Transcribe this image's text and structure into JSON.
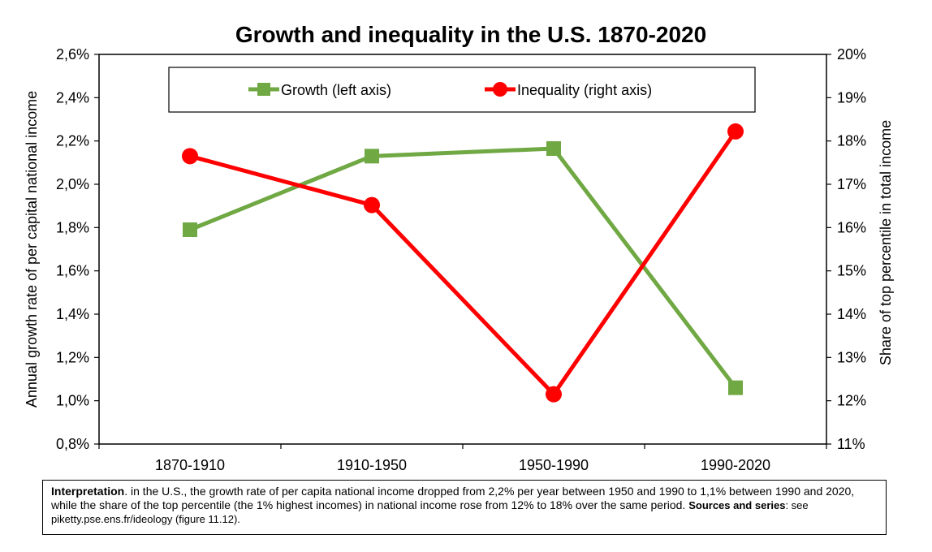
{
  "chart_data": {
    "type": "line",
    "title": "Growth and inequality in the U.S. 1870-2020",
    "categories": [
      "1870-1910",
      "1910-1950",
      "1950-1990",
      "1990-2020"
    ],
    "ylabel_left": "Annual growth rate of per capital national income",
    "ylabel_right": "Share of top percentile in total income",
    "yticks_left": [
      "0,8%",
      "1,0%",
      "1,2%",
      "1,4%",
      "1,6%",
      "1,8%",
      "2,0%",
      "2,2%",
      "2,4%",
      "2,6%"
    ],
    "yticks_right": [
      "11%",
      "12%",
      "13%",
      "14%",
      "15%",
      "16%",
      "17%",
      "18%",
      "19%",
      "20%"
    ],
    "ylim_left": [
      0.8,
      2.6
    ],
    "ylim_right": [
      11,
      20
    ],
    "legend_position": "top-center",
    "grid": false,
    "series": [
      {
        "name": "Growth (left axis)",
        "axis": "left",
        "color": "#70a844",
        "marker": "square",
        "values": [
          1.79,
          2.13,
          2.165,
          1.06
        ]
      },
      {
        "name": "Inequality (right axis)",
        "axis": "right",
        "color": "#ff0000",
        "marker": "circle",
        "values": [
          17.65,
          16.52,
          12.15,
          18.22
        ]
      }
    ]
  },
  "note": {
    "interpretation_label": "Interpretation",
    "interpretation_text": ". in the U.S., the growth rate of per capita national income dropped from 2,2% per year between 1950 and 1990 to 1,1% between 1990 and 2020, while the share of the top percentile (the 1% highest incomes) in national income rose from 12% to 18% over the same period.",
    "sources_label": "Sources and series",
    "sources_text": ": see piketty.pse.ens.fr/ideology (figure 11.12)."
  }
}
